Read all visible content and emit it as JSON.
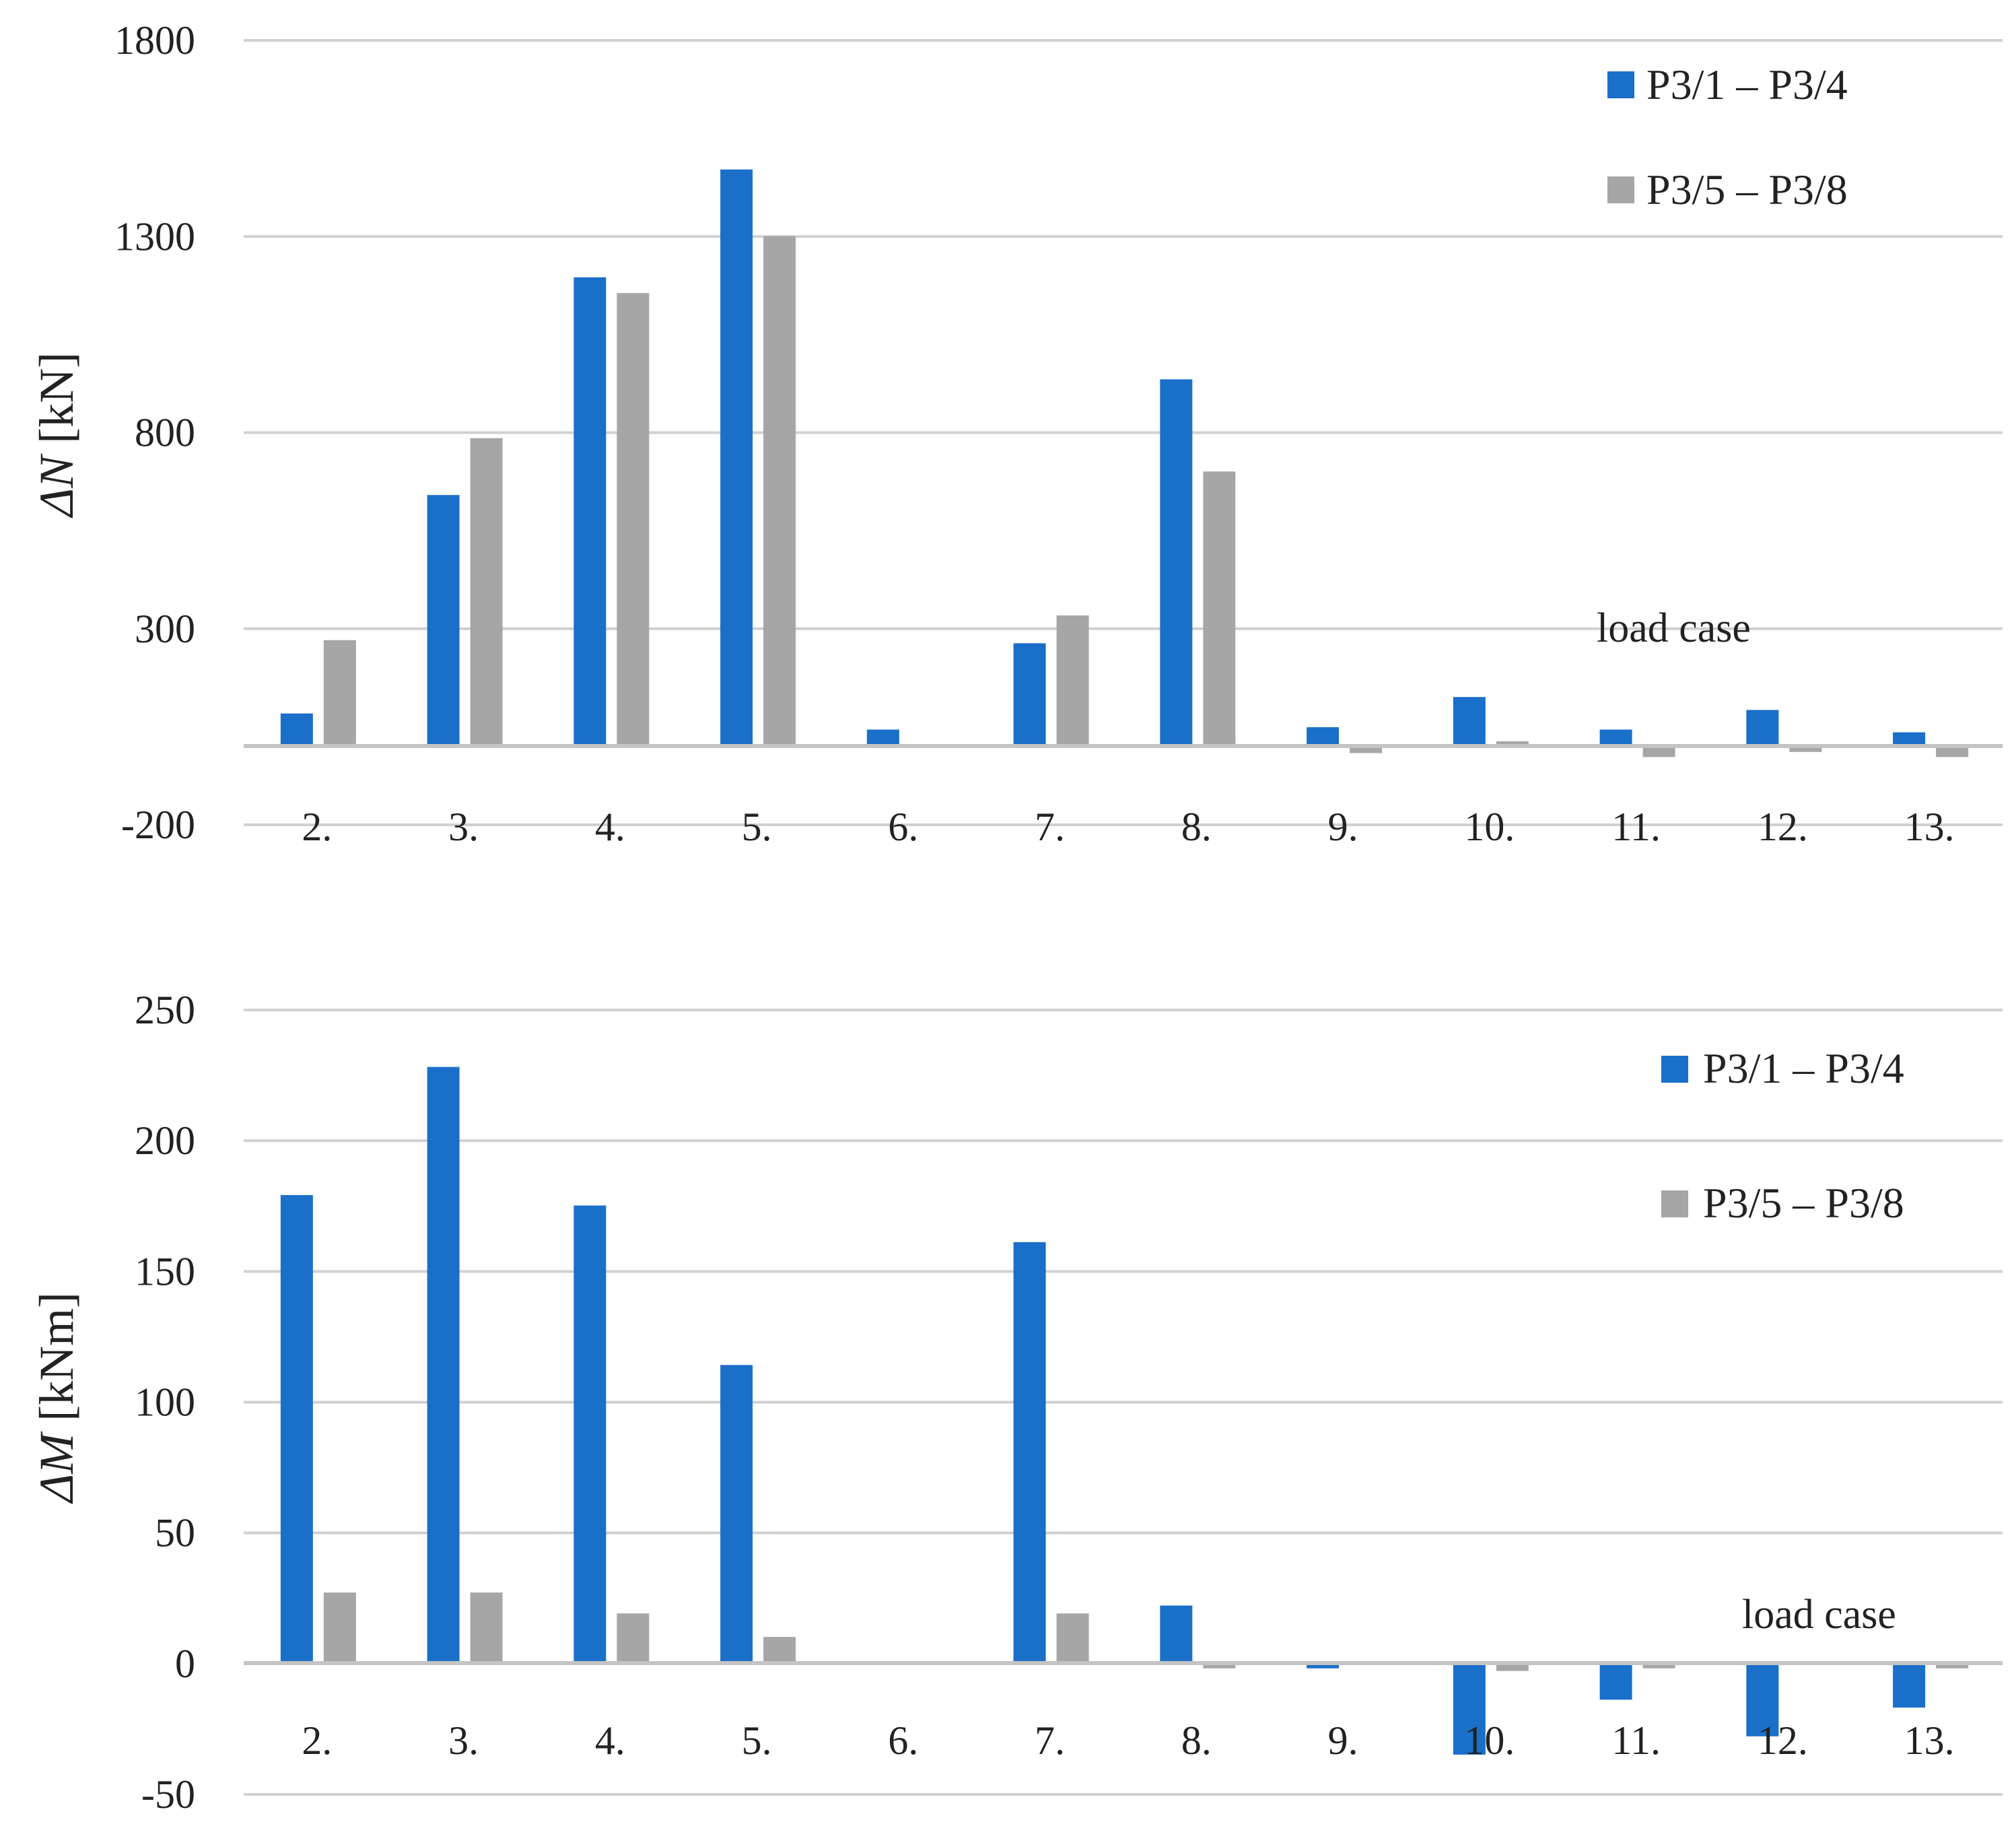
{
  "chart_data": [
    {
      "type": "bar",
      "id": "delta-n",
      "ylabel_symbol": "ΔN",
      "ylabel_unit": " [kN]",
      "ylim": [
        -200,
        1800
      ],
      "yticks": [
        1800,
        1300,
        800,
        300,
        -200
      ],
      "ytick_labels": [
        "1800",
        "1300",
        "800",
        "300",
        "-200"
      ],
      "categories": [
        "2.",
        "3.",
        "4.",
        "5.",
        "6.",
        "7.",
        "8.",
        "9.",
        "10.",
        "11.",
        "12.",
        "13."
      ],
      "series": [
        {
          "name": "P3/1 – P3/4",
          "color": "#1a6fc9",
          "values": [
            83,
            640,
            1195,
            1470,
            42,
            262,
            935,
            48,
            125,
            42,
            92,
            35
          ]
        },
        {
          "name": "P3/5 – P3/8",
          "color": "#a6a6a6",
          "values": [
            270,
            785,
            1155,
            1300,
            0,
            333,
            700,
            -18,
            12,
            -28,
            -15,
            -28
          ]
        }
      ],
      "note": "load case",
      "legend_position": "top-right"
    },
    {
      "type": "bar",
      "id": "delta-m",
      "ylabel_symbol": "ΔM",
      "ylabel_unit": "  [kNm]",
      "ylim": [
        -50,
        250
      ],
      "yticks": [
        250,
        200,
        150,
        100,
        50,
        0,
        -50
      ],
      "ytick_labels": [
        "250",
        "200",
        "150",
        "100",
        "50",
        "0",
        "-50"
      ],
      "categories": [
        "2.",
        "3.",
        "4.",
        "5.",
        "6.",
        "7.",
        "8.",
        "9.",
        "10.",
        "11.",
        "12.",
        "13."
      ],
      "series": [
        {
          "name": "P3/1 – P3/4",
          "color": "#1a6fc9",
          "values": [
            179,
            228,
            175,
            114,
            0,
            161,
            22,
            -2,
            -35,
            -14,
            -28,
            -17
          ]
        },
        {
          "name": "P3/5 – P3/8",
          "color": "#a6a6a6",
          "values": [
            27,
            27,
            19,
            10,
            0,
            19,
            -2,
            0,
            -3,
            -2,
            0,
            -2
          ]
        }
      ],
      "note": "load case",
      "legend_position": "top-right"
    }
  ]
}
